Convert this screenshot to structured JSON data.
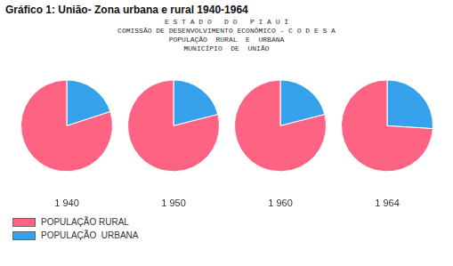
{
  "chart_data": {
    "type": "pie",
    "title": "Gráfico 1: União- Zona urbana e rural 1940-1964",
    "subtitle": [
      "E S T A D O   D O   P I A U Í",
      "COMISSÃO DE DESENVOLVIMENTO ECONÔMICO - C O D E S A",
      "POPULAÇÃO  RURAL  E  URBANA",
      "MUNICÍPIO  DE  UNIÃO"
    ],
    "categories": [
      "1 940",
      "1 950",
      "1 960",
      "1 964"
    ],
    "series": [
      {
        "name": "POPULAÇÃO  URBANA",
        "color": "#36a2eb",
        "values": [
          0.2,
          0.21,
          0.21,
          0.26
        ]
      },
      {
        "name": "POPULAÇÃO RURAL",
        "color": "#ff6384",
        "values": [
          0.8,
          0.79,
          0.79,
          0.74
        ]
      }
    ],
    "legend": "lower left"
  }
}
